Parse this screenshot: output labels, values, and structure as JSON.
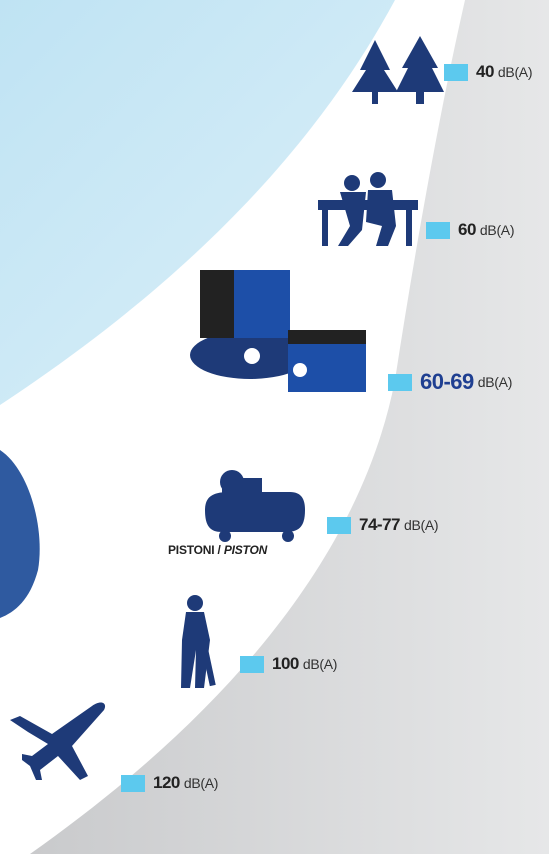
{
  "levels": [
    {
      "value": "40",
      "unit": "dB(A)"
    },
    {
      "value": "60",
      "unit": "dB(A)"
    },
    {
      "value": "60-69",
      "unit": "dB(A)"
    },
    {
      "value": "74-77",
      "unit": "dB(A)"
    },
    {
      "value": "100",
      "unit": "dB(A)"
    },
    {
      "value": "120",
      "unit": "dB(A)"
    }
  ],
  "caption": {
    "it": "PISTONI",
    "sep": "/",
    "en": "PISTON"
  }
}
